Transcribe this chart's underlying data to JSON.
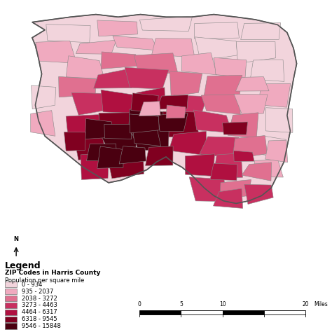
{
  "legend_entries": [
    {
      "label": "0 - 934",
      "color": "#F2D4DC"
    },
    {
      "label": "935 - 2037",
      "color": "#F0AABF"
    },
    {
      "label": "2038 - 3272",
      "color": "#E07090"
    },
    {
      "label": "3273 - 4463",
      "color": "#C83060"
    },
    {
      "label": "4464 - 6317",
      "color": "#B01040"
    },
    {
      "label": "6318 - 9545",
      "color": "#800020"
    },
    {
      "label": "9546 - 15848",
      "color": "#4A0010"
    }
  ],
  "background_color": "#FFFFFF",
  "border_color": "#999999",
  "fig_width": 4.74,
  "fig_height": 4.74,
  "dpi": 100,
  "legend_title": "Legend",
  "legend_subtitle": "ZIP Codes in Harris County",
  "legend_sublabel": "Population per square mile"
}
